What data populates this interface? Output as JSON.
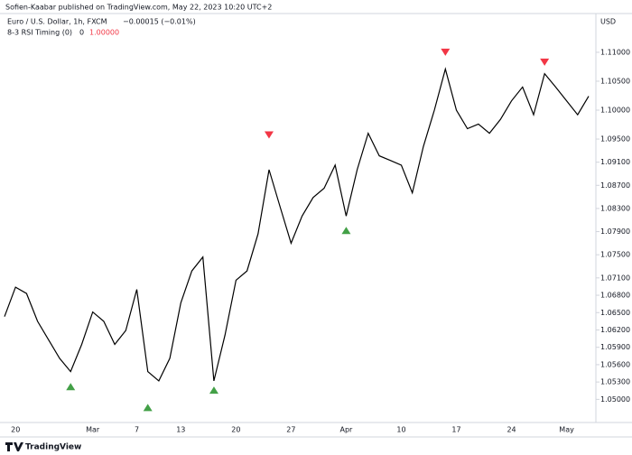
{
  "chart_data": {
    "type": "line",
    "publisher_note": "Sofien-Kaabar published on TradingView.com, May 22, 2023 10:20 UTC+2",
    "title": "Euro / U.S. Dollar, 1h, FXCM",
    "change": "−0.00015 (−0.01%)",
    "indicator": "8-3 RSI Timing (0)",
    "indicator_value": "0",
    "indicator_signal": "1.00000",
    "y_label": "USD",
    "brand": "TradingView",
    "categories": [
      null,
      "20",
      null,
      null,
      null,
      null,
      null,
      null,
      "Mar",
      null,
      null,
      null,
      "7",
      null,
      null,
      null,
      "13",
      null,
      null,
      null,
      null,
      "20",
      null,
      null,
      null,
      null,
      "27",
      null,
      null,
      null,
      null,
      "Apr",
      null,
      null,
      null,
      null,
      "10",
      null,
      null,
      null,
      null,
      "17",
      null,
      null,
      null,
      null,
      "24",
      null,
      null,
      null,
      null,
      "May",
      null,
      null
    ],
    "series": [
      {
        "color": "#000000",
        "values": [
          1.0643,
          1.0694,
          1.0683,
          1.0635,
          1.0603,
          1.0571,
          1.0548,
          1.0595,
          1.0651,
          1.0635,
          1.0595,
          1.0619,
          1.069,
          1.0548,
          1.0532,
          1.0571,
          1.0667,
          1.0722,
          1.0746,
          1.0532,
          1.0611,
          1.0706,
          1.0722,
          1.0786,
          1.0897,
          1.0833,
          1.077,
          1.0817,
          1.0849,
          1.0865,
          1.0905,
          1.0817,
          1.0897,
          1.096,
          1.0921,
          1.0913,
          1.0905,
          1.0857,
          1.0937,
          1.1,
          1.1071,
          1.1,
          1.0968,
          1.0976,
          1.096,
          1.0984,
          1.1016,
          1.104,
          1.0992,
          1.1063,
          1.104,
          1.1016,
          1.0992,
          1.1024
        ]
      }
    ],
    "signals": {
      "down": {
        "color": "#f23645",
        "values": [
          null,
          null,
          null,
          null,
          null,
          null,
          null,
          null,
          null,
          null,
          null,
          null,
          null,
          null,
          null,
          null,
          null,
          null,
          null,
          null,
          null,
          null,
          null,
          null,
          1.0957,
          null,
          null,
          null,
          null,
          null,
          null,
          null,
          null,
          null,
          null,
          null,
          null,
          null,
          null,
          null,
          1.11,
          null,
          null,
          null,
          null,
          null,
          null,
          null,
          null,
          1.1083,
          null,
          null,
          null,
          null
        ]
      },
      "up": {
        "color": "#43a047",
        "values": [
          null,
          null,
          null,
          null,
          null,
          null,
          1.0522,
          null,
          null,
          null,
          null,
          null,
          null,
          1.0486,
          null,
          null,
          null,
          null,
          null,
          1.0516,
          null,
          null,
          null,
          null,
          null,
          null,
          null,
          null,
          null,
          null,
          null,
          1.0792,
          null,
          null,
          null,
          null,
          null,
          null,
          null,
          null,
          null,
          null,
          null,
          null,
          null,
          null,
          null,
          null,
          null,
          null,
          null,
          null,
          null,
          null
        ]
      }
    },
    "ylim": [
      1.046,
      1.1167
    ],
    "yticks": [
      {
        "value": 1.11,
        "label": "1.11000"
      },
      {
        "value": 1.105,
        "label": "1.10500"
      },
      {
        "value": 1.1,
        "label": "1.10000"
      },
      {
        "value": 1.095,
        "label": "1.09500"
      },
      {
        "value": 1.091,
        "label": "1.09100"
      },
      {
        "value": 1.087,
        "label": "1.08700"
      },
      {
        "value": 1.083,
        "label": "1.08300"
      },
      {
        "value": 1.079,
        "label": "1.07900"
      },
      {
        "value": 1.075,
        "label": "1.07500"
      },
      {
        "value": 1.071,
        "label": "1.07100"
      },
      {
        "value": 1.068,
        "label": "1.06800"
      },
      {
        "value": 1.065,
        "label": "1.06500"
      },
      {
        "value": 1.062,
        "label": "1.06200"
      },
      {
        "value": 1.059,
        "label": "1.05900"
      },
      {
        "value": 1.056,
        "label": "1.05600"
      },
      {
        "value": 1.053,
        "label": "1.05300"
      },
      {
        "value": 1.05,
        "label": "1.05000"
      }
    ],
    "grid": false
  }
}
